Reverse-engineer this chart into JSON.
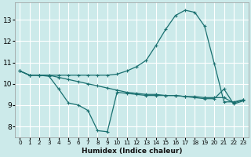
{
  "xlabel": "Humidex (Indice chaleur)",
  "bg_color": "#cceaea",
  "line_color": "#1a7070",
  "grid_color": "#ffffff",
  "xlim": [
    -0.5,
    23.5
  ],
  "ylim": [
    7.5,
    13.8
  ],
  "xticks": [
    0,
    1,
    2,
    3,
    4,
    5,
    6,
    7,
    8,
    9,
    10,
    11,
    12,
    13,
    14,
    15,
    16,
    17,
    18,
    19,
    20,
    21,
    22,
    23
  ],
  "yticks": [
    8,
    9,
    10,
    11,
    12,
    13
  ],
  "line1_x": [
    0,
    1,
    2,
    3,
    4,
    5,
    6,
    7,
    8,
    9,
    10,
    11,
    12,
    13,
    14,
    15,
    16,
    17,
    18,
    19,
    20,
    21,
    22,
    23
  ],
  "line1_y": [
    10.6,
    10.4,
    10.4,
    10.4,
    10.4,
    10.4,
    10.4,
    10.4,
    10.4,
    10.4,
    10.45,
    10.6,
    10.8,
    11.1,
    11.8,
    12.55,
    13.2,
    13.45,
    13.35,
    12.7,
    10.95,
    9.15,
    9.15,
    9.25
  ],
  "line2_x": [
    0,
    1,
    2,
    3,
    4,
    5,
    6,
    7,
    8,
    9,
    10,
    11,
    12,
    13,
    14,
    15,
    16,
    17,
    18,
    19,
    20,
    21,
    22,
    23
  ],
  "line2_y": [
    10.6,
    10.4,
    10.4,
    10.4,
    10.3,
    10.2,
    10.1,
    10.0,
    9.9,
    9.8,
    9.7,
    9.6,
    9.55,
    9.5,
    9.5,
    9.45,
    9.45,
    9.4,
    9.4,
    9.35,
    9.35,
    9.35,
    9.1,
    9.25
  ],
  "line3_x": [
    0,
    1,
    2,
    3,
    4,
    5,
    6,
    7,
    8,
    9,
    10,
    11,
    12,
    13,
    14,
    15,
    16,
    17,
    18,
    19,
    20,
    21,
    22,
    23
  ],
  "line3_y": [
    10.6,
    10.4,
    10.4,
    10.35,
    9.75,
    9.1,
    9.0,
    8.75,
    7.8,
    7.75,
    9.6,
    9.55,
    9.5,
    9.45,
    9.45,
    9.45,
    9.45,
    9.4,
    9.35,
    9.3,
    9.3,
    9.75,
    9.05,
    9.2
  ],
  "marker": "+",
  "markersize": 3,
  "linewidth": 0.9
}
